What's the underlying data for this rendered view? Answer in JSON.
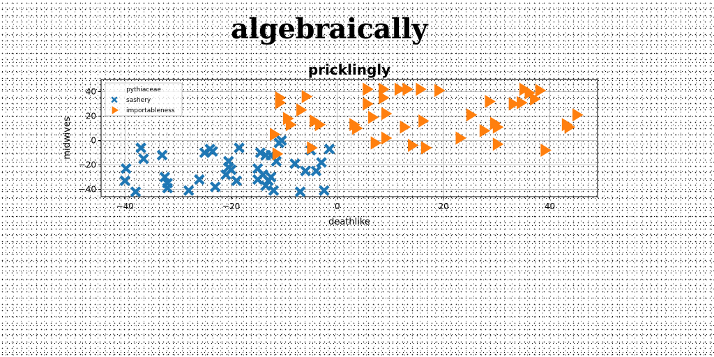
{
  "figure_title": "algebraically",
  "chart_data": {
    "type": "scatter",
    "title": "pricklingly",
    "xlabel": "deathlike",
    "ylabel": "midwives",
    "xlim": [
      -44.5,
      49
    ],
    "ylim": [
      -46,
      50
    ],
    "xticks": [
      -40,
      -20,
      0,
      20,
      40
    ],
    "yticks": [
      -40,
      -20,
      0,
      20,
      40
    ],
    "xtick_labels": [
      "−40",
      "−20",
      "0",
      "20",
      "40"
    ],
    "ytick_labels": [
      "−40",
      "−20",
      "0",
      "20",
      "40"
    ],
    "grid": true,
    "legend": {
      "title": "pythiaceae",
      "position": "top-left"
    },
    "series": [
      {
        "name": "sashery",
        "marker": "x",
        "color": "#1f77b4",
        "points": [
          [
            -39.8,
            -23
          ],
          [
            -40,
            -33
          ],
          [
            -38,
            -42
          ],
          [
            -37,
            -6
          ],
          [
            -36.5,
            -15
          ],
          [
            -33,
            -12
          ],
          [
            -32.5,
            -30
          ],
          [
            -32,
            -35
          ],
          [
            -32,
            -39
          ],
          [
            -28,
            -41
          ],
          [
            -26,
            -32
          ],
          [
            -25,
            -10
          ],
          [
            -24,
            -7
          ],
          [
            -23.5,
            -9
          ],
          [
            -23,
            -38
          ],
          [
            -21,
            -28
          ],
          [
            -20.5,
            -22
          ],
          [
            -20.5,
            -17
          ],
          [
            -20,
            -24
          ],
          [
            -19,
            -33
          ],
          [
            -18.5,
            -6
          ],
          [
            -15,
            -32
          ],
          [
            -15,
            -23
          ],
          [
            -14.5,
            -10
          ],
          [
            -14,
            -28
          ],
          [
            -13.5,
            -12
          ],
          [
            -13.5,
            -37
          ],
          [
            -13,
            -33
          ],
          [
            -12.5,
            -12
          ],
          [
            -12.5,
            -30
          ],
          [
            -12,
            -41
          ],
          [
            -11.5,
            -17
          ],
          [
            -11,
            -2
          ],
          [
            -10.5,
            0
          ],
          [
            -8,
            -19
          ],
          [
            -7,
            -42
          ],
          [
            -6,
            -25
          ],
          [
            -5,
            -8
          ],
          [
            -4,
            -25
          ],
          [
            -3,
            -18
          ],
          [
            -2.5,
            -41
          ],
          [
            -1.5,
            -7
          ]
        ]
      },
      {
        "name": "importableness",
        "marker": "triangle-right",
        "color": "#ff7f0e",
        "points": [
          [
            -12,
            5
          ],
          [
            -11.5,
            -11
          ],
          [
            -11,
            35
          ],
          [
            -11,
            31
          ],
          [
            -9.5,
            18
          ],
          [
            -9,
            13
          ],
          [
            -7,
            25
          ],
          [
            -6,
            36
          ],
          [
            -5,
            -6
          ],
          [
            -4.5,
            16
          ],
          [
            -3.5,
            13
          ],
          [
            3,
            13
          ],
          [
            3.5,
            10
          ],
          [
            5.5,
            42
          ],
          [
            5.5,
            30
          ],
          [
            6.5,
            19
          ],
          [
            7,
            -2
          ],
          [
            8.5,
            42
          ],
          [
            8.5,
            35
          ],
          [
            9,
            2
          ],
          [
            9,
            22
          ],
          [
            11.5,
            42
          ],
          [
            12.5,
            11
          ],
          [
            13,
            42
          ],
          [
            14,
            -4
          ],
          [
            15.5,
            42
          ],
          [
            16,
            16
          ],
          [
            16.5,
            -6
          ],
          [
            19,
            41
          ],
          [
            23,
            2
          ],
          [
            25,
            21
          ],
          [
            27.5,
            8
          ],
          [
            28.5,
            32
          ],
          [
            29.5,
            14
          ],
          [
            30,
            11
          ],
          [
            30,
            -3
          ],
          [
            33,
            30
          ],
          [
            34.5,
            31
          ],
          [
            35,
            42
          ],
          [
            36,
            39
          ],
          [
            37,
            34
          ],
          [
            38,
            41
          ],
          [
            39,
            -8
          ],
          [
            43,
            13
          ],
          [
            43.5,
            11
          ],
          [
            45,
            21
          ]
        ]
      }
    ]
  }
}
